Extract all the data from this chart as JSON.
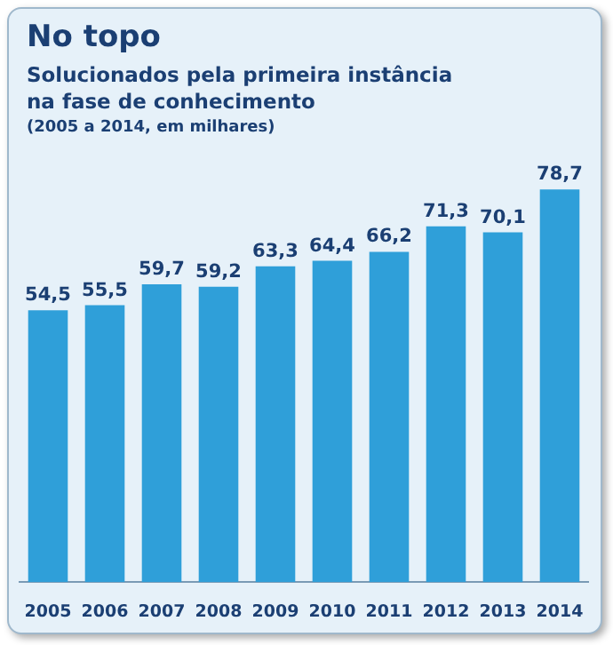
{
  "chart_data": {
    "type": "bar",
    "title": "No topo",
    "subtitle": "Solucionados pela primeira instância\nna fase de conhecimento",
    "annotations": [
      "(2005 a 2014, em milhares)"
    ],
    "categories": [
      "2005",
      "2006",
      "2007",
      "2008",
      "2009",
      "2010",
      "2011",
      "2012",
      "2013",
      "2014"
    ],
    "values": [
      54.5,
      55.5,
      59.7,
      59.2,
      63.3,
      64.4,
      66.2,
      71.3,
      70.1,
      78.7
    ],
    "value_labels": [
      "54,5",
      "55,5",
      "59,7",
      "59,2",
      "63,3",
      "64,4",
      "66,2",
      "71,3",
      "70,1",
      "78,7"
    ],
    "color": "#2f9fd9",
    "legend": false,
    "grid": false
  }
}
